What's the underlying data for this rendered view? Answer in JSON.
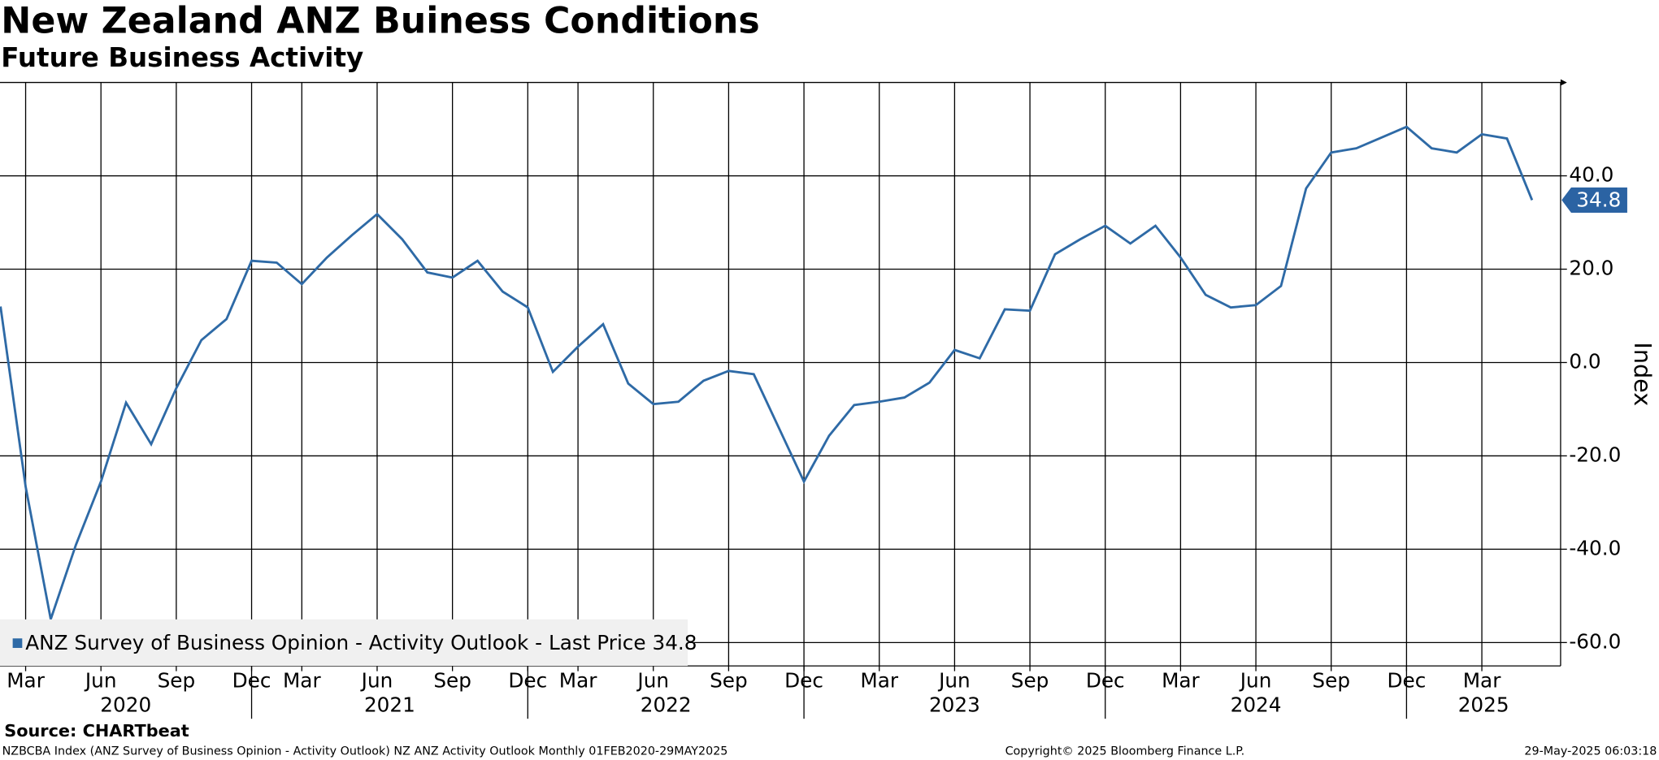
{
  "chart_data": {
    "type": "line",
    "title": "New Zealand ANZ Buiness Conditions",
    "subtitle": "Future Business Activity",
    "y_axis_label": "Index",
    "source_prefix": "Source:",
    "source": "CHARTbeat",
    "footer_left": "NZBCBA Index (ANZ Survey of Business Opinion - Activity Outlook) NZ ANZ Activity Outlook  Monthly 01FEB2020-29MAY2025",
    "footer_center": "Copyright© 2025 Bloomberg Finance L.P.",
    "footer_right": "29-May-2025 06:03:18",
    "categories": [
      null,
      "Mar",
      null,
      null,
      "Jun",
      null,
      null,
      "Sep",
      null,
      null,
      "Dec",
      null,
      "Mar",
      null,
      null,
      "Jun",
      null,
      null,
      "Sep",
      null,
      null,
      "Dec",
      null,
      "Mar",
      null,
      null,
      "Jun",
      null,
      null,
      "Sep",
      null,
      null,
      "Dec",
      null,
      null,
      "Mar",
      null,
      null,
      "Jun",
      null,
      null,
      "Sep",
      null,
      null,
      "Dec",
      null,
      null,
      "Mar",
      null,
      null,
      "Jun",
      null,
      null,
      "Sep",
      null,
      null,
      "Dec",
      null,
      null,
      "Mar",
      null,
      null
    ],
    "years": [
      "2020",
      "2021",
      "2022",
      "2023",
      "2024",
      "2025"
    ],
    "series": [
      {
        "name": "ANZ Survey of Business Opinion - Activity Outlook - Last Price",
        "color": "#2e6aa6",
        "values": [
          12.0,
          -26.6,
          -55.0,
          -39.1,
          -25.5,
          -8.6,
          -17.5,
          -5.5,
          4.8,
          9.3,
          21.8,
          21.4,
          16.8,
          22.5,
          27.3,
          31.8,
          26.4,
          19.3,
          18.2,
          21.8,
          15.2,
          11.8,
          -2.0,
          3.4,
          8.2,
          -4.5,
          -8.9,
          -8.4,
          -3.9,
          -1.8,
          -2.5,
          -14.0,
          -25.5,
          -15.7,
          -9.1,
          -8.4,
          -7.5,
          -4.3,
          2.7,
          0.9,
          11.4,
          11.1,
          23.2,
          26.4,
          29.3,
          25.5,
          29.3,
          22.5,
          14.5,
          11.8,
          12.3,
          16.4,
          37.3,
          45.0,
          45.9,
          48.2,
          50.5,
          45.9,
          45.0,
          48.9,
          48.0,
          34.8
        ]
      }
    ],
    "ylim": [
      -65,
      60
    ],
    "yticks": [
      {
        "value": 40,
        "label": "40.0"
      },
      {
        "value": 20,
        "label": "20.0"
      },
      {
        "value": 0,
        "label": "0.0"
      },
      {
        "value": -20,
        "label": "-20.0"
      },
      {
        "value": -40,
        "label": "-40.0"
      },
      {
        "value": -60,
        "label": "-60.0"
      }
    ],
    "grid": true,
    "legend_position": "lower left"
  }
}
